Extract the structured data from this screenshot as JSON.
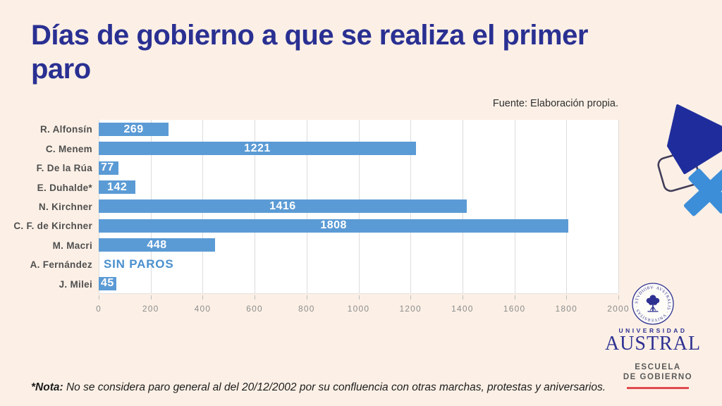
{
  "title": "Días de gobierno a que se realiza el primer paro",
  "source": "Fuente: Elaboración propia.",
  "note": {
    "label": "*Nota:",
    "text": " No se considera paro general al del 20/12/2002 por su confluencia con otras marchas, protestas y aniversarios."
  },
  "chart_data": {
    "type": "bar",
    "orientation": "horizontal",
    "title": "Días de gobierno a que se realiza el primer paro",
    "categories": [
      "R. Alfonsín",
      "C. Menem",
      "F. De la Rúa",
      "E. Duhalde*",
      "N. Kirchner",
      "C. F. de Kirchner",
      "M. Macri",
      "A. Fernández",
      "J. Milei"
    ],
    "values": [
      269,
      1221,
      77,
      142,
      1416,
      1808,
      448,
      null,
      45
    ],
    "value_labels": [
      "269",
      "1221",
      "77",
      "142",
      "1416",
      "1808",
      "448",
      "SIN PAROS",
      "45"
    ],
    "xlim": [
      0,
      2000
    ],
    "x_ticks": [
      0,
      200,
      400,
      600,
      800,
      1000,
      1200,
      1400,
      1600,
      1800,
      2000
    ],
    "grid": true,
    "legend": false,
    "bar_color": "#5b9bd5",
    "plot_background": "#ffffff"
  },
  "logo": {
    "seal_text": "· AVSTRALIS · VNIVERSITAS · STVDIORVM ·",
    "university_small": "UNIVERSIDAD",
    "university_big": "AUSTRAL",
    "school_line1": "ESCUELA",
    "school_line2": "DE GOBIERNO"
  },
  "colors": {
    "background": "#fcf0e6",
    "title_text": "#2a3092",
    "bar": "#5b9bd5",
    "sin_paros_text": "#4a90ce",
    "logo_indigo": "#2e3192",
    "logo_red_line": "#e04a4e",
    "deco_dark_blue": "#1f2d9c",
    "deco_light_blue": "#3c8ed9"
  }
}
